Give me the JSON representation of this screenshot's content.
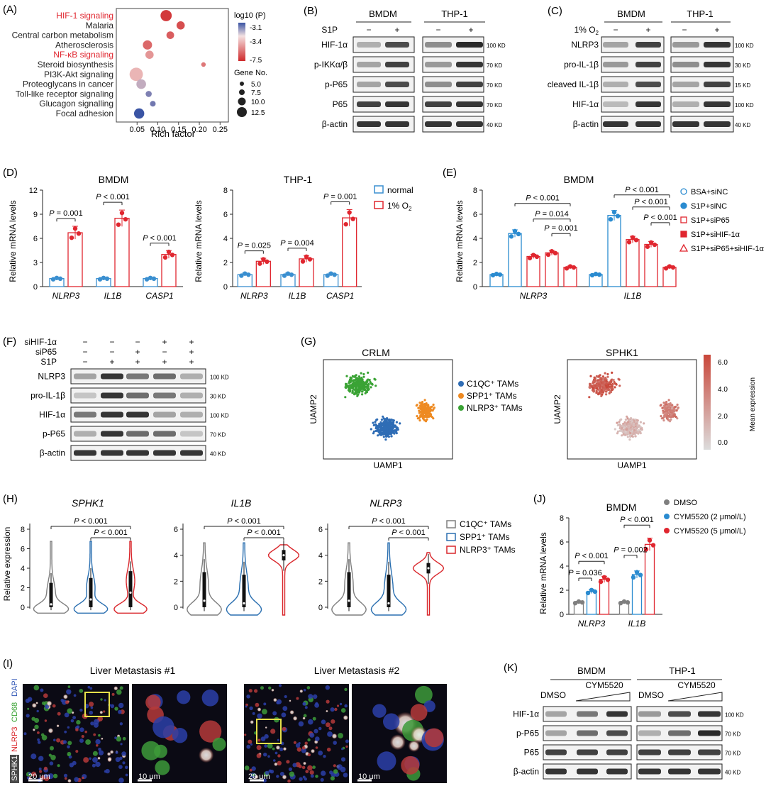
{
  "panels": {
    "A": "(A)",
    "B": "(B)",
    "C": "(C)",
    "D": "(D)",
    "E": "(E)",
    "F": "(F)",
    "G": "(G)",
    "H": "(H)",
    "I": "(I)",
    "J": "(J)",
    "K": "(K)"
  },
  "panel_a": {
    "xlabel": "Rich factor",
    "xticks": [
      "0.05",
      "0.10",
      "0.15",
      "0.20",
      "0.25"
    ],
    "color_legend_title": "log10 (P)",
    "color_ticks": [
      "-3.1",
      "-3.4",
      "-7.5"
    ],
    "size_legend_title": "Gene No.",
    "size_legend": [
      "5.0",
      "7.5",
      "10.0",
      "12.5"
    ],
    "colors": {
      "highlight": "#e0262f",
      "low": "#3a54a4",
      "high": "#cf2a2c",
      "mid": "#f2d6d6"
    }
  },
  "chart_data": [
    {
      "panel": "A",
      "type": "scatter",
      "title": "",
      "xlabel": "Rich factor",
      "ylabel": "",
      "xlim": [
        0.0,
        0.27
      ],
      "categories": [
        "HIF-1 signaling",
        "Malaria",
        "Central carbon metabolism",
        "Atherosclerosis",
        "NF-κB signaling",
        "Steroid biosynthesis",
        "PI3K-Akt signaling",
        "Proteoglycans in cancer",
        "Toll-like receptor signaling",
        "Glucagon signalling",
        "Focal adhesion"
      ],
      "highlighted": [
        "HIF-1 signaling",
        "NF-κB signaling"
      ],
      "x": [
        0.12,
        0.155,
        0.13,
        0.075,
        0.08,
        0.21,
        0.048,
        0.06,
        0.078,
        0.088,
        0.055
      ],
      "gene_count": [
        11,
        8,
        7.5,
        9,
        8,
        4.5,
        13,
        9.5,
        6,
        5.5,
        10
      ],
      "log10p": [
        -7.2,
        -6.8,
        -6.5,
        -6.3,
        -5.4,
        -6,
        -4.8,
        -4.1,
        -3.6,
        -3.5,
        -3.1
      ]
    },
    {
      "panel": "D",
      "type": "bar",
      "title": "BMDM",
      "ylabel": "Relative mRNA levels",
      "ylim": [
        0,
        12
      ],
      "categories": [
        "NLRP3",
        "IL1B",
        "CASP1"
      ],
      "series": [
        {
          "name": "normal",
          "values": [
            1.0,
            1.0,
            1.0
          ]
        },
        {
          "name": "1% O2",
          "values": [
            6.7,
            8.5,
            4.0
          ]
        }
      ],
      "annotations": [
        "P = 0.001",
        "P < 0.001",
        "P < 0.001"
      ]
    },
    {
      "panel": "D",
      "type": "bar",
      "title": "THP-1",
      "ylabel": "Relative mRNA levels",
      "ylim": [
        0,
        8
      ],
      "categories": [
        "NLRP3",
        "IL1B",
        "CASP1"
      ],
      "series": [
        {
          "name": "normal",
          "values": [
            1.0,
            1.0,
            1.0
          ]
        },
        {
          "name": "1% O2",
          "values": [
            2.1,
            2.3,
            5.7
          ]
        }
      ],
      "annotations": [
        "P = 0.025",
        "P = 0.004",
        "P = 0.001"
      ]
    },
    {
      "panel": "E",
      "type": "bar",
      "title": "BMDM",
      "ylabel": "Relative mRNA levels",
      "ylim": [
        0,
        8
      ],
      "categories": [
        "NLRP3",
        "IL1B"
      ],
      "series": [
        {
          "name": "BSA+siNC",
          "values": [
            1.0,
            1.0
          ]
        },
        {
          "name": "S1P+siNC",
          "values": [
            4.4,
            5.9
          ]
        },
        {
          "name": "S1P+siP65",
          "values": [
            2.5,
            3.9
          ]
        },
        {
          "name": "S1P+siHIF-1α",
          "values": [
            2.8,
            3.5
          ]
        },
        {
          "name": "S1P+siP65+siHIF-1α",
          "values": [
            1.6,
            1.6
          ]
        }
      ],
      "annotations": [
        "P < 0.001",
        "P = 0.014",
        "P = 0.001",
        "P < 0.001",
        "P < 0.001",
        "P < 0.001"
      ]
    },
    {
      "panel": "H",
      "type": "violin",
      "ylabel": "Relative expression",
      "subplots": [
        "SPHK1",
        "IL1B",
        "NLRP3"
      ],
      "groups": [
        "C1QC+ TAMs",
        "SPP1+ TAMs",
        "NLRP3+ TAMs"
      ],
      "median": [
        [
          0.3,
          0.8,
          1.5
        ],
        [
          0.5,
          0.3,
          4.0
        ],
        [
          0.5,
          0.3,
          3.0
        ]
      ],
      "annotations": [
        "P < 0.001",
        "P < 0.001"
      ]
    },
    {
      "panel": "J",
      "type": "bar",
      "title": "BMDM",
      "ylabel": "Relative mRNA levels",
      "ylim": [
        0,
        8
      ],
      "categories": [
        "NLRP3",
        "IL1B"
      ],
      "series": [
        {
          "name": "DMSO",
          "values": [
            1.0,
            1.0
          ]
        },
        {
          "name": "CYM5520 (2 μmol/L)",
          "values": [
            1.9,
            3.3
          ]
        },
        {
          "name": "CYM5520 (5 μmol/L)",
          "values": [
            2.9,
            5.8
          ]
        }
      ],
      "annotations": [
        "P < 0.001",
        "P = 0.036",
        "P < 0.001",
        "P = 0.002"
      ]
    }
  ],
  "panel_b": {
    "groups": [
      "BMDM",
      "THP-1"
    ],
    "treat": "S1P",
    "signs": [
      "−",
      "+",
      "−",
      "+"
    ],
    "rows": [
      "HIF-1α",
      "p-IKKα/β",
      "p-P65",
      "P65",
      "β-actin"
    ],
    "kd": [
      "100 KD",
      "70 KD",
      "70 KD",
      "70 KD",
      "40 KD"
    ]
  },
  "panel_c": {
    "groups": [
      "BMDM",
      "THP-1"
    ],
    "treat": "1% O",
    "treat_sub": "2",
    "signs": [
      "−",
      "+",
      "−",
      "+"
    ],
    "rows": [
      "NLRP3",
      "pro-IL-1β",
      "cleaved IL-1β",
      "HIF-1α",
      "β-actin"
    ],
    "kd": [
      "100 KD",
      "30 KD",
      "15 KD",
      "100 KD",
      "40 KD"
    ]
  },
  "panel_d": {
    "left_title": "BMDM",
    "right_title": "THP-1",
    "ylabel": "Relative mRNA levels",
    "left_yticks": [
      "0",
      "3",
      "6",
      "9",
      "12"
    ],
    "right_yticks": [
      "0",
      "2",
      "4",
      "6",
      "8"
    ],
    "genes": [
      "NLRP3",
      "IL1B",
      "CASP1"
    ],
    "left_p": [
      "P = 0.001",
      "P < 0.001",
      "P < 0.001"
    ],
    "right_p": [
      "P = 0.025",
      "P = 0.004",
      "P = 0.001"
    ],
    "legend": [
      "normal",
      "1% O"
    ],
    "legend_sub": "2",
    "colors": {
      "normal": "#3a8fd0",
      "hypoxia": "#e0262f"
    }
  },
  "panel_e": {
    "title": "BMDM",
    "ylabel": "Relative mRNA levels",
    "yticks": [
      "0",
      "2",
      "4",
      "6",
      "8"
    ],
    "genes": [
      "NLRP3",
      "IL1B"
    ],
    "p_values": [
      "P < 0.001",
      "P = 0.014",
      "P = 0.001",
      "P < 0.001",
      "P < 0.001",
      "P < 0.001"
    ],
    "legend": [
      "BSA+siNC",
      "S1P+siNC",
      "S1P+siP65",
      "S1P+siHIF-1α",
      "S1P+siP65+siHIF-1α"
    ]
  },
  "panel_f": {
    "treat_rows": [
      "siHIF-1α",
      "siP65",
      "S1P"
    ],
    "signs": [
      [
        "−",
        "−",
        "−",
        "+",
        "+"
      ],
      [
        "−",
        "−",
        "+",
        "−",
        "+"
      ],
      [
        "−",
        "+",
        "+",
        "+",
        "+"
      ]
    ],
    "rows": [
      "NLRP3",
      "pro-IL-1β",
      "HIF-1α",
      "p-P65",
      "β-actin"
    ],
    "kd": [
      "100 KD",
      "30 KD",
      "100 KD",
      "70 KD",
      "40 KD"
    ]
  },
  "panel_g": {
    "left_title": "CRLM",
    "right_title": "SPHK1",
    "xlabel": "UAMP1",
    "ylabel": "UAMP2",
    "legend": [
      "C1QC⁺ TAMs",
      "SPP1⁺ TAMs",
      "NLRP3⁺ TAMs"
    ],
    "colorbar_title": "Mean expression",
    "colorbar_ticks": [
      "6.0",
      "4.0",
      "2.0",
      "0.0"
    ],
    "colors": {
      "c1qc": "#2f6db5",
      "spp1": "#ee8a22",
      "nlrp3": "#3aa335",
      "expr_hi": "#c9473a",
      "expr_lo": "#d9d9d9"
    }
  },
  "panel_h": {
    "genes": [
      "SPHK1",
      "IL1B",
      "NLRP3"
    ],
    "ylabel": "Relative expression",
    "yticks": [
      [
        "0",
        "2",
        "4",
        "6",
        "8"
      ],
      [
        "0",
        "2",
        "4",
        "6"
      ],
      [
        "0",
        "2",
        "4",
        "6"
      ]
    ],
    "p_values": [
      "P < 0.001",
      "P < 0.001"
    ],
    "legend": [
      "C1QC⁺ TAMs",
      "SPP1⁺ TAMs",
      "NLRP3⁺ TAMs"
    ],
    "colors": {
      "c1qc": "#7f7f7f",
      "spp1": "#2a6fb0",
      "nlrp3": "#d9262b"
    }
  },
  "panel_i": {
    "title1": "Liver Metastasis #1",
    "title2": "Liver Metastasis #2",
    "stain": [
      "SPHK1",
      "NLRP3",
      "CD68",
      "DAPI"
    ],
    "scale_big": "20 μm",
    "scale_small": "10 μm"
  },
  "panel_j": {
    "title": "BMDM",
    "ylabel": "Relative mRNA levels",
    "yticks": [
      "0",
      "2",
      "4",
      "6",
      "8"
    ],
    "genes": [
      "NLRP3",
      "IL1B"
    ],
    "p_values": [
      "P < 0.001",
      "P = 0.036",
      "P < 0.001",
      "P = 0.002"
    ],
    "legend": [
      "DMSO",
      "CYM5520 (2 μmol/L)",
      "CYM5520 (5 μmol/L)"
    ],
    "colors": {
      "dmso": "#7f7f7f",
      "c2": "#2a8bd0",
      "c5": "#e0262f"
    }
  },
  "panel_k": {
    "groups": [
      "BMDM",
      "THP-1"
    ],
    "dmso": "DMSO",
    "drug": "CYM5520",
    "rows": [
      "HIF-1α",
      "p-P65",
      "P65",
      "β-actin"
    ],
    "kd": [
      "100 KD",
      "70 KD",
      "70 KD",
      "40 KD"
    ]
  }
}
